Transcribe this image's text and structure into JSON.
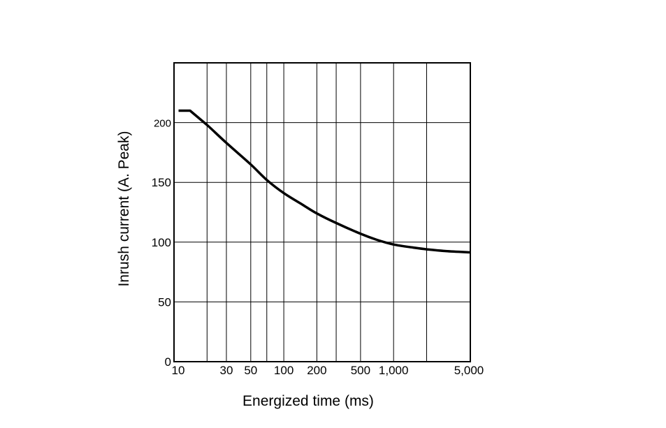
{
  "chart_data": {
    "type": "line",
    "xlabel": "Energized time (ms)",
    "ylabel": "Inrush current (A. Peak)",
    "x_scale": "log",
    "xlim": [
      10,
      5000
    ],
    "ylim": [
      0,
      250
    ],
    "grid": true,
    "x_gridlines": [
      20,
      30,
      50,
      70,
      100,
      200,
      300,
      500,
      1000,
      2000,
      5000
    ],
    "x_ticks": [
      {
        "value": 10,
        "label": "10"
      },
      {
        "value": 30,
        "label": "30"
      },
      {
        "value": 50,
        "label": "50"
      },
      {
        "value": 100,
        "label": "100"
      },
      {
        "value": 200,
        "label": "200"
      },
      {
        "value": 500,
        "label": "500"
      },
      {
        "value": 1000,
        "label": "1,000"
      },
      {
        "value": 5000,
        "label": "5,000"
      }
    ],
    "y_ticks": [
      {
        "value": 0,
        "label": "0"
      },
      {
        "value": 50,
        "label": "50"
      },
      {
        "value": 100,
        "label": "100"
      },
      {
        "value": 150,
        "label": "150"
      },
      {
        "value": 200,
        "label": "200"
      }
    ],
    "series": [
      {
        "color": "#000000",
        "points": [
          {
            "x": 11,
            "y": 210
          },
          {
            "x": 14,
            "y": 210
          },
          {
            "x": 20,
            "y": 198
          },
          {
            "x": 30,
            "y": 183
          },
          {
            "x": 50,
            "y": 165
          },
          {
            "x": 70,
            "y": 152
          },
          {
            "x": 100,
            "y": 141
          },
          {
            "x": 150,
            "y": 131
          },
          {
            "x": 200,
            "y": 124
          },
          {
            "x": 300,
            "y": 116
          },
          {
            "x": 500,
            "y": 107
          },
          {
            "x": 700,
            "y": 102
          },
          {
            "x": 1000,
            "y": 98
          },
          {
            "x": 1500,
            "y": 95.5
          },
          {
            "x": 2000,
            "y": 94
          },
          {
            "x": 3000,
            "y": 92.5
          },
          {
            "x": 5000,
            "y": 91.5
          }
        ]
      }
    ]
  }
}
